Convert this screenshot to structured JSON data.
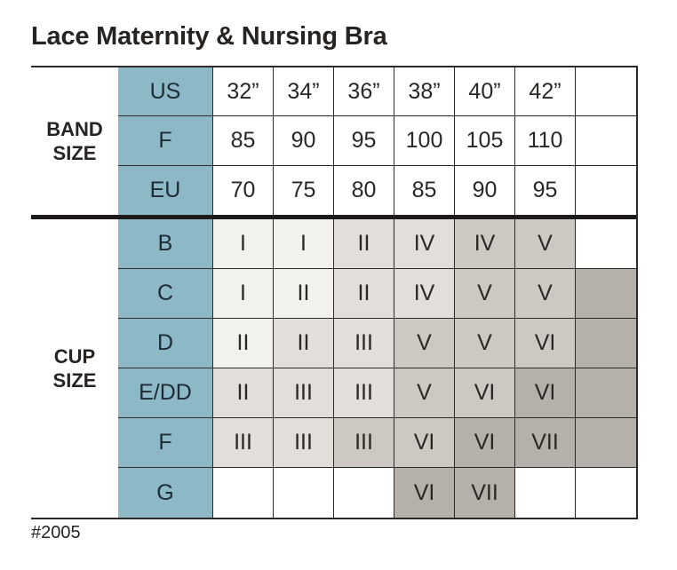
{
  "page": {
    "title": "Lace Maternity & Nursing Bra",
    "footnote": "#2005"
  },
  "colors": {
    "header_teal": "#8db9c6",
    "shade_lightest": "#f3f1ee",
    "shade_light": "#e2ded9",
    "shade_medium": "#cdc8c2",
    "shade_dark": "#b5b0a9",
    "grid_line": "#2e2a28",
    "text": "#272320"
  },
  "table": {
    "band_section_label": "BAND SIZE",
    "cup_section_label": "CUP SIZE",
    "band_rows": [
      {
        "header": "US",
        "cells": [
          "32”",
          "34”",
          "36”",
          "38”",
          "40”",
          "42”",
          ""
        ]
      },
      {
        "header": "F",
        "cells": [
          "85",
          "90",
          "95",
          "100",
          "105",
          "110",
          ""
        ]
      },
      {
        "header": "EU",
        "cells": [
          "70",
          "75",
          "80",
          "85",
          "90",
          "95",
          ""
        ]
      }
    ],
    "cup_rows": [
      {
        "header": "B",
        "cells": [
          {
            "text": "I",
            "shade": "s0"
          },
          {
            "text": "I",
            "shade": "s0"
          },
          {
            "text": "II",
            "shade": "s1"
          },
          {
            "text": "IV",
            "shade": "s1"
          },
          {
            "text": "IV",
            "shade": "s2"
          },
          {
            "text": "V",
            "shade": "s2"
          },
          {
            "text": "",
            "shade": "w"
          }
        ]
      },
      {
        "header": "C",
        "cells": [
          {
            "text": "I",
            "shade": "s0"
          },
          {
            "text": "II",
            "shade": "s0"
          },
          {
            "text": "II",
            "shade": "s1"
          },
          {
            "text": "IV",
            "shade": "s1"
          },
          {
            "text": "V",
            "shade": "s2"
          },
          {
            "text": "V",
            "shade": "s2"
          },
          {
            "text": "",
            "shade": "s3"
          }
        ]
      },
      {
        "header": "D",
        "cells": [
          {
            "text": "II",
            "shade": "s0"
          },
          {
            "text": "II",
            "shade": "s1"
          },
          {
            "text": "III",
            "shade": "s1"
          },
          {
            "text": "V",
            "shade": "s2"
          },
          {
            "text": "V",
            "shade": "s2"
          },
          {
            "text": "VI",
            "shade": "s2"
          },
          {
            "text": "",
            "shade": "s3"
          }
        ]
      },
      {
        "header": "E/DD",
        "cells": [
          {
            "text": "II",
            "shade": "s1"
          },
          {
            "text": "III",
            "shade": "s1"
          },
          {
            "text": "III",
            "shade": "s1"
          },
          {
            "text": "V",
            "shade": "s2"
          },
          {
            "text": "VI",
            "shade": "s2"
          },
          {
            "text": "VI",
            "shade": "s3"
          },
          {
            "text": "",
            "shade": "s3"
          }
        ]
      },
      {
        "header": "F",
        "cells": [
          {
            "text": "III",
            "shade": "s1"
          },
          {
            "text": "III",
            "shade": "s1"
          },
          {
            "text": "III",
            "shade": "s2"
          },
          {
            "text": "VI",
            "shade": "s2"
          },
          {
            "text": "VI",
            "shade": "s3"
          },
          {
            "text": "VII",
            "shade": "s3"
          },
          {
            "text": "",
            "shade": "s3"
          }
        ]
      },
      {
        "header": "G",
        "cells": [
          {
            "text": "",
            "shade": "w"
          },
          {
            "text": "",
            "shade": "w"
          },
          {
            "text": "",
            "shade": "w"
          },
          {
            "text": "VI",
            "shade": "s3"
          },
          {
            "text": "VII",
            "shade": "s3"
          },
          {
            "text": "",
            "shade": "w"
          },
          {
            "text": "",
            "shade": "w"
          }
        ]
      }
    ]
  },
  "chart_data": {
    "type": "table",
    "title": "Lace Maternity & Nursing Bra",
    "column_headers_us_band": [
      "32”",
      "34”",
      "36”",
      "38”",
      "40”",
      "42”"
    ],
    "row_groups": [
      {
        "label": "BAND SIZE",
        "rows": [
          {
            "header": "US",
            "values": [
              "32”",
              "34”",
              "36”",
              "38”",
              "40”",
              "42”"
            ]
          },
          {
            "header": "F",
            "values": [
              85,
              90,
              95,
              100,
              105,
              110
            ]
          },
          {
            "header": "EU",
            "values": [
              70,
              75,
              80,
              85,
              90,
              95
            ]
          }
        ]
      },
      {
        "label": "CUP SIZE",
        "rows": [
          {
            "header": "B",
            "values": [
              "I",
              "I",
              "II",
              "IV",
              "IV",
              "V",
              ""
            ]
          },
          {
            "header": "C",
            "values": [
              "I",
              "II",
              "II",
              "IV",
              "V",
              "V",
              ""
            ]
          },
          {
            "header": "D",
            "values": [
              "II",
              "II",
              "III",
              "V",
              "V",
              "VI",
              ""
            ]
          },
          {
            "header": "E/DD",
            "values": [
              "II",
              "III",
              "III",
              "V",
              "VI",
              "VI",
              ""
            ]
          },
          {
            "header": "F",
            "values": [
              "III",
              "III",
              "III",
              "VI",
              "VI",
              "VII",
              ""
            ]
          },
          {
            "header": "G",
            "values": [
              "",
              "",
              "",
              "VI",
              "VII",
              "",
              ""
            ]
          }
        ]
      }
    ],
    "annotations": [
      "#2005"
    ],
    "legend_note": "cell background shades range lightest-to-darkest with size group"
  }
}
